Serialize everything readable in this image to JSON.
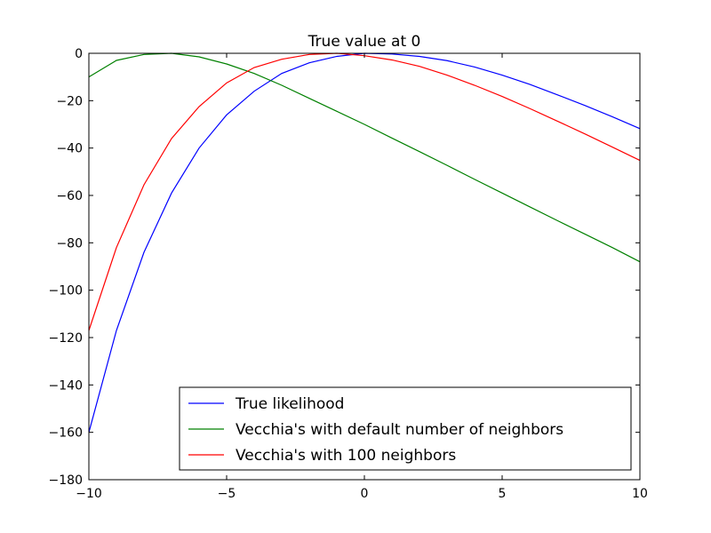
{
  "chart_data": {
    "type": "line",
    "title": "True value at 0",
    "xlabel": "",
    "ylabel": "",
    "xlim": [
      -10,
      10
    ],
    "ylim": [
      -180,
      0
    ],
    "x_ticks": [
      -10,
      -5,
      0,
      5,
      10
    ],
    "y_ticks": [
      0,
      -20,
      -40,
      -60,
      -80,
      -100,
      -120,
      -140,
      -160,
      -180
    ],
    "x_tick_labels": [
      "−10",
      "−5",
      "0",
      "5",
      "10"
    ],
    "y_tick_labels": [
      "0",
      "−20",
      "−40",
      "−60",
      "−80",
      "−100",
      "−120",
      "−140",
      "−160",
      "−180"
    ],
    "grid": false,
    "legend_position": "lower center",
    "x": [
      -10,
      -9,
      -8,
      -7,
      -6,
      -5,
      -4,
      -3,
      -2,
      -1,
      0,
      1,
      2,
      3,
      4,
      5,
      6,
      7,
      8,
      9,
      10
    ],
    "series": [
      {
        "name": "True likelihood",
        "color": "#0000ff",
        "values": [
          -160,
          -117,
          -84,
          -59,
          -40,
          -26,
          -16,
          -8.5,
          -4,
          -1.3,
          0,
          -0.3,
          -1.3,
          -3.1,
          -5.8,
          -9.2,
          -13.1,
          -17.5,
          -22,
          -26.8,
          -31.8
        ]
      },
      {
        "name": "Vecchia's with default number of neighbors",
        "color": "#008000",
        "values": [
          -10,
          -3,
          -0.5,
          0,
          -1.5,
          -4.5,
          -8.5,
          -13.5,
          -19,
          -24.5,
          -30,
          -35.8,
          -41.5,
          -47.3,
          -53.2,
          -59,
          -64.8,
          -70.6,
          -76.3,
          -82,
          -88
        ]
      },
      {
        "name": "Vecchia's with 100 neighbors",
        "color": "#ff0000",
        "values": [
          -117,
          -82,
          -55.5,
          -36,
          -22.5,
          -12.5,
          -6,
          -2.5,
          -0.5,
          0,
          -1,
          -2.8,
          -5.5,
          -9.2,
          -13.5,
          -18.2,
          -23.3,
          -28.6,
          -34,
          -39.6,
          -45.2
        ]
      }
    ]
  }
}
